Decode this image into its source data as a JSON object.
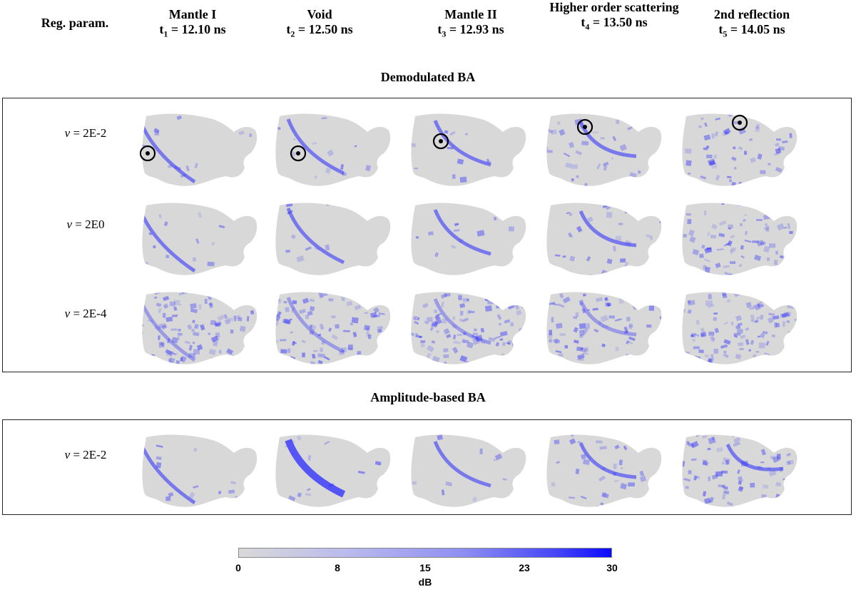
{
  "header": {
    "reg_param_label": "Reg. param.",
    "columns": [
      {
        "title": "Mantle I",
        "time_sym": "t",
        "time_sub": "1",
        "time_val": " = 12.10 ns"
      },
      {
        "title": "Void",
        "time_sym": "t",
        "time_sub": "2",
        "time_val": " = 12.50 ns"
      },
      {
        "title": "Mantle II",
        "time_sym": "t",
        "time_sub": "3",
        "time_val": " = 12.93 ns"
      },
      {
        "title": "Higher order scattering",
        "time_sym": "t",
        "time_sub": "4",
        "time_val": " = 13.50 ns"
      },
      {
        "title": "2nd reflection",
        "time_sym": "t",
        "time_sub": "5",
        "time_val": " = 14.05 ns"
      }
    ]
  },
  "sections": {
    "demodulated": {
      "title": "Demodulated BA",
      "rows": [
        {
          "nu_symbol": "ν",
          "value": " = 2E-2"
        },
        {
          "nu_symbol": "ν",
          "value": " = 2E0"
        },
        {
          "nu_symbol": "ν",
          "value": " = 2E-4"
        }
      ]
    },
    "amplitude": {
      "title": "Amplitude-based BA",
      "rows": [
        {
          "nu_symbol": "ν",
          "value": " = 2E-2"
        }
      ]
    }
  },
  "colorbar": {
    "ticks": [
      "0",
      "8",
      "15",
      "23",
      "30"
    ],
    "min": 0,
    "max": 30,
    "label": "dB",
    "colors": {
      "low": "#d9d9d9",
      "high": "#0a0aff"
    }
  },
  "colors": {
    "shape_fill": "#d8d8d8",
    "accent": "#2a2aff",
    "marker": "#000000"
  }
}
